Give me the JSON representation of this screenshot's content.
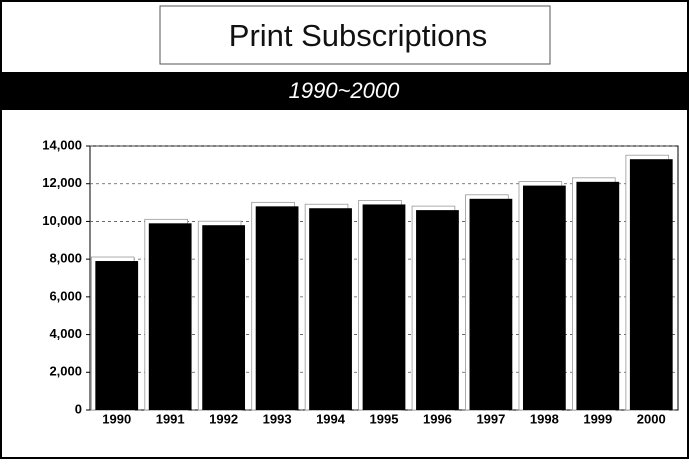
{
  "chart_data": {
    "type": "bar",
    "title": "Print Subscriptions",
    "subtitle": "1990~2000",
    "categories": [
      "1990",
      "1991",
      "1992",
      "1993",
      "1994",
      "1995",
      "1996",
      "1997",
      "1998",
      "1999",
      "2000"
    ],
    "values": [
      7900,
      9900,
      9800,
      10800,
      10700,
      10900,
      10600,
      11200,
      11900,
      12100,
      13300
    ],
    "color": "#000000",
    "ylim": [
      0,
      14000
    ],
    "yticks": [
      0,
      {
        "value": 2000,
        "label": "2,000"
      },
      {
        "value": 4000,
        "label": "4,000"
      },
      {
        "value": 6000,
        "label": "6,000"
      },
      {
        "value": 8000,
        "label": "8,000"
      },
      {
        "value": 10000,
        "label": "10,000"
      },
      {
        "value": 12000,
        "label": "12,000"
      },
      {
        "value": 14000,
        "label": "14,000"
      }
    ],
    "grid": true
  }
}
